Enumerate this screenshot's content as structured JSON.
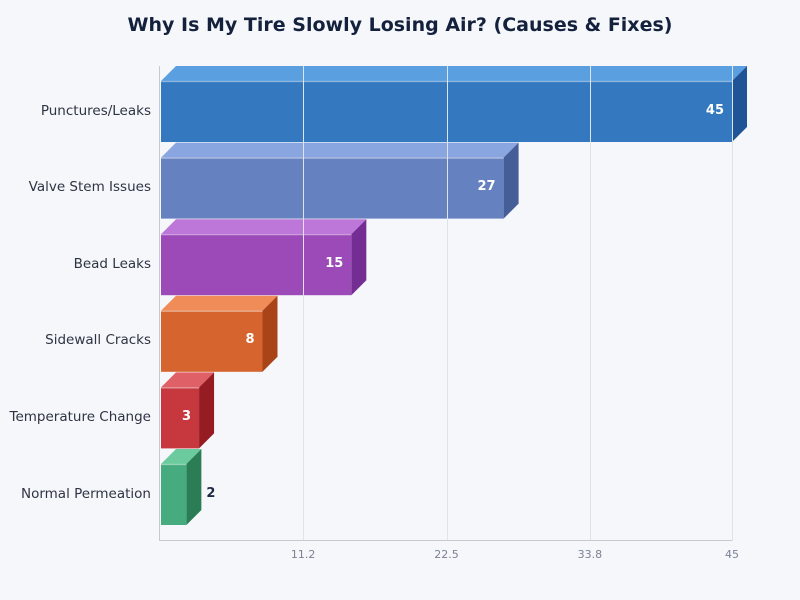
{
  "chart_data": {
    "type": "bar",
    "orientation": "horizontal",
    "style": "3d",
    "title": "Why Is My Tire Slowly Losing Air? (Causes & Fixes)",
    "xlabel": "",
    "ylabel": "",
    "categories": [
      "Punctures/Leaks",
      "Valve Stem Issues",
      "Bead Leaks",
      "Sidewall Cracks",
      "Temperature Change",
      "Normal Permeation"
    ],
    "values": [
      45,
      27,
      15,
      8,
      3,
      2
    ],
    "xlim": [
      0,
      45
    ],
    "x_ticks": [
      "11.2",
      "22.5",
      "33.8",
      "45"
    ],
    "grid": true,
    "legend": null,
    "colors": {
      "front": [
        "#3478c0",
        "#6681c0",
        "#9b4ab8",
        "#d6642e",
        "#c7373e",
        "#46ab7e"
      ],
      "top": [
        "#5a9fe0",
        "#8aa6e0",
        "#bd77d8",
        "#f08c58",
        "#e06068",
        "#6ccb9e"
      ],
      "side": [
        "#1f5596",
        "#455e98",
        "#742d92",
        "#a84418",
        "#941c22",
        "#2a7d55"
      ]
    }
  }
}
